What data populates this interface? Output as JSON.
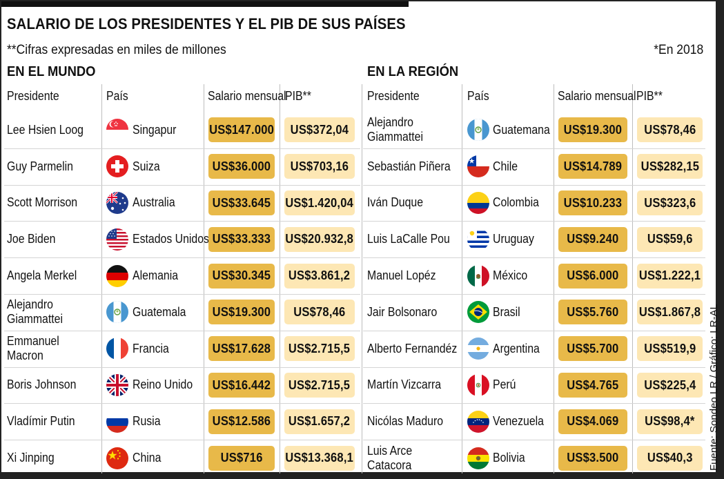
{
  "title": "SALARIO DE LOS PRESIDENTES Y EL PIB DE SUS PAÍSES",
  "subtitle": "**Cifras expresadas en miles de millones",
  "note": "*En 2018",
  "credit": "Fuente: Sondeo LR / Gráfico: LR-AL",
  "headers": {
    "president": "Presidente",
    "country": "País",
    "salary": "Salario mensual",
    "gdp": "PIB**"
  },
  "sections": [
    {
      "title": "EN EL MUNDO",
      "rows": [
        {
          "president": "Lee Hsien Loog",
          "country": "Singapur",
          "flag": "singapore-flag-icon",
          "salary": "US$147.000",
          "gdp": "US$372,04"
        },
        {
          "president": "Guy Parmelin",
          "country": "Suiza",
          "flag": "switzerland-flag-icon",
          "salary": "US$36.000",
          "gdp": "US$703,16"
        },
        {
          "president": "Scott Morrison",
          "country": "Australia",
          "flag": "australia-flag-icon",
          "salary": "US$33.645",
          "gdp": "US$1.420,04"
        },
        {
          "president": "Joe Biden",
          "country": "Estados Unidos",
          "flag": "usa-flag-icon",
          "salary": "US$33.333",
          "gdp": "US$20.932,8"
        },
        {
          "president": "Angela Merkel",
          "country": "Alemania",
          "flag": "germany-flag-icon",
          "salary": "US$30.345",
          "gdp": "US$3.861,2"
        },
        {
          "president": "Alejandro Giammattei",
          "country": "Guatemala",
          "flag": "guatemala-flag-icon",
          "salary": "US$19.300",
          "gdp": "US$78,46"
        },
        {
          "president": "Emmanuel Macron",
          "country": "Francia",
          "flag": "france-flag-icon",
          "salary": "US$17.628",
          "gdp": "US$2.715,5"
        },
        {
          "president": "Boris Johnson",
          "country": "Reino Unido",
          "flag": "uk-flag-icon",
          "salary": "US$16.442",
          "gdp": "US$2.715,5"
        },
        {
          "president": "Vladímir Putin",
          "country": "Rusia",
          "flag": "russia-flag-icon",
          "salary": "US$12.586",
          "gdp": "US$1.657,2"
        },
        {
          "president": "Xi Jinping",
          "country": "China",
          "flag": "china-flag-icon",
          "salary": "US$716",
          "gdp": "US$13.368,1"
        }
      ]
    },
    {
      "title": "EN LA REGIÓN",
      "rows": [
        {
          "president": "Alejandro Giammattei",
          "country": "Guatemana",
          "flag": "guatemala-flag-icon",
          "salary": "US$19.300",
          "gdp": "US$78,46"
        },
        {
          "president": "Sebastián Piñera",
          "country": "Chile",
          "flag": "chile-flag-icon",
          "salary": "US$14.789",
          "gdp": "US$282,15"
        },
        {
          "president": "Iván Duque",
          "country": "Colombia",
          "flag": "colombia-flag-icon",
          "salary": "US$10.233",
          "gdp": "US$323,6"
        },
        {
          "president": "Luis LaCalle Pou",
          "country": "Uruguay",
          "flag": "uruguay-flag-icon",
          "salary": "US$9.240",
          "gdp": "US$59,6"
        },
        {
          "president": "Manuel Lopéz",
          "country": "México",
          "flag": "mexico-flag-icon",
          "salary": "US$6.000",
          "gdp": "US$1.222,1"
        },
        {
          "president": "Jair Bolsonaro",
          "country": "Brasil",
          "flag": "brazil-flag-icon",
          "salary": "US$5.760",
          "gdp": "US$1.867,8"
        },
        {
          "president": "Alberto Fernandéz",
          "country": "Argentina",
          "flag": "argentina-flag-icon",
          "salary": "US$5.700",
          "gdp": "US$519,9"
        },
        {
          "president": "Martín Vizcarra",
          "country": "Perú",
          "flag": "peru-flag-icon",
          "salary": "US$4.765",
          "gdp": "US$225,4"
        },
        {
          "president": "Nicólas Maduro",
          "country": "Venezuela",
          "flag": "venezuela-flag-icon",
          "salary": "US$4.069",
          "gdp": "US$98,4*"
        },
        {
          "president": "Luis Arce Catacora",
          "country": "Bolivia",
          "flag": "bolivia-flag-icon",
          "salary": "US$3.500",
          "gdp": "US$40,3"
        }
      ]
    }
  ],
  "colors": {
    "salary_pill": "#e8b949",
    "gdp_pill": "#fde7b4"
  }
}
